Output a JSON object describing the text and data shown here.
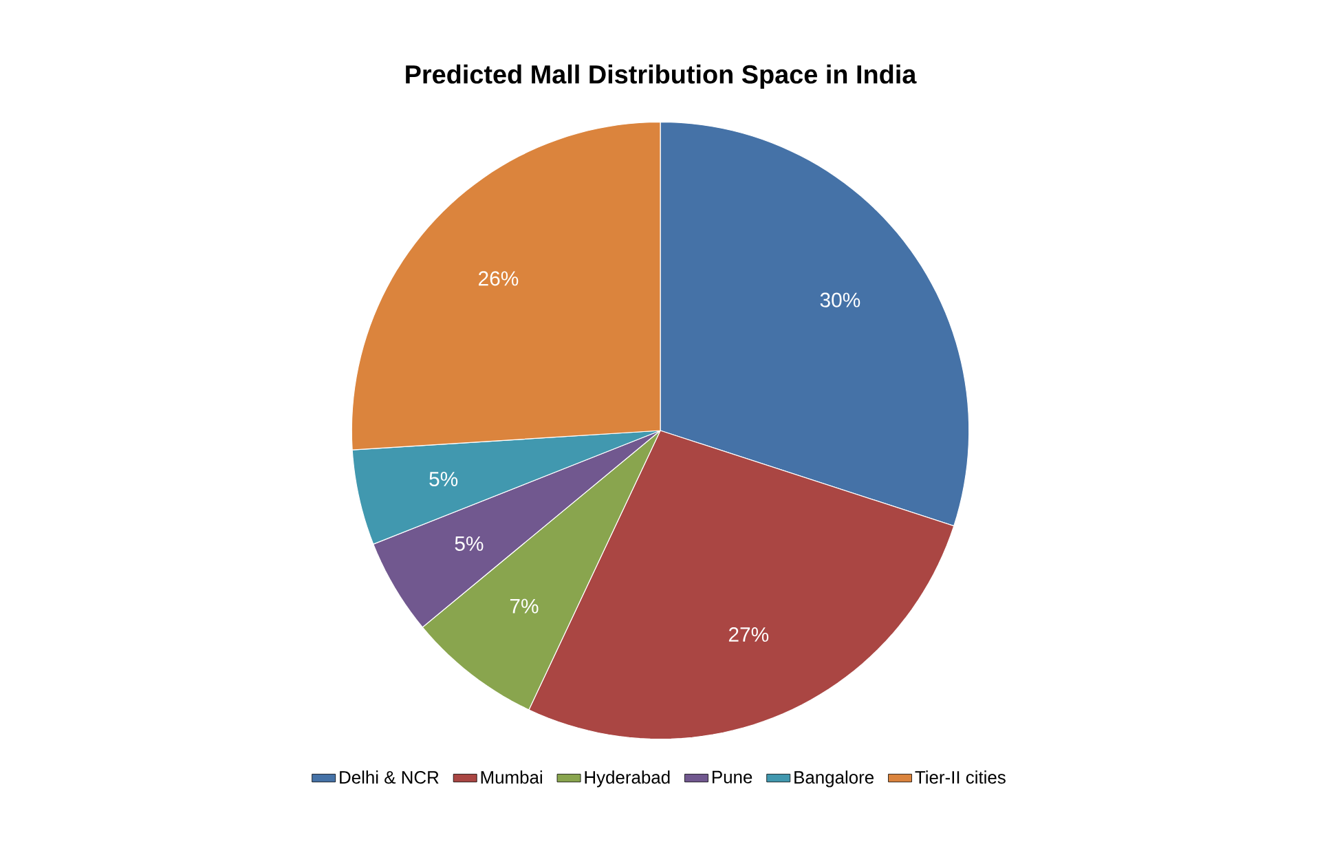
{
  "chart_data": {
    "type": "pie",
    "title": "Predicted Mall Distribution Space in India",
    "categories": [
      "Delhi & NCR",
      "Mumbai",
      "Hyderabad",
      "Pune",
      "Bangalore",
      "Tier-II cities"
    ],
    "values": [
      30,
      27,
      7,
      5,
      5,
      26
    ],
    "value_labels": [
      "30%",
      "27%",
      "7%",
      "5%",
      "5%",
      "26%"
    ],
    "colors": [
      "#4572a7",
      "#aa4643",
      "#89a54e",
      "#71588f",
      "#4198af",
      "#db843d"
    ],
    "legend": "bottom"
  }
}
